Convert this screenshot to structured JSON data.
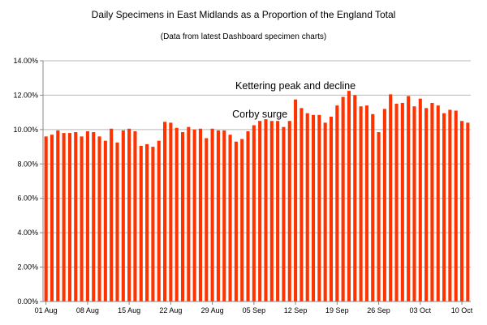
{
  "chart_data": {
    "type": "bar",
    "title": "Daily Specimens in East Midlands as a Proportion of the England Total",
    "subtitle": "(Data from latest Dashboard specimen charts)",
    "xlabel": "",
    "ylabel": "",
    "ylim": [
      0,
      14
    ],
    "y_tick_labels": [
      "0.00%",
      "2.00%",
      "4.00%",
      "6.00%",
      "8.00%",
      "10.00%",
      "12.00%",
      "14.00%"
    ],
    "x_tick_labels": [
      "01 Aug",
      "08 Aug",
      "15 Aug",
      "22 Aug",
      "29 Aug",
      "05 Sep",
      "12 Sep",
      "19 Sep",
      "26 Sep",
      "03 Oct",
      "10 Oct"
    ],
    "grid": true,
    "bar_color": "#ff3300",
    "values": [
      9.6,
      9.7,
      9.95,
      9.8,
      9.8,
      9.85,
      9.6,
      9.9,
      9.85,
      9.6,
      9.35,
      10.05,
      9.25,
      9.95,
      10.05,
      9.9,
      9.05,
      9.15,
      9.0,
      9.35,
      10.45,
      10.4,
      10.1,
      9.85,
      10.15,
      10.0,
      10.05,
      9.5,
      10.05,
      9.95,
      9.95,
      9.7,
      9.3,
      9.45,
      9.9,
      10.25,
      10.5,
      10.6,
      10.5,
      10.5,
      10.15,
      10.5,
      11.75,
      11.25,
      10.95,
      10.85,
      10.85,
      10.4,
      10.75,
      11.4,
      11.9,
      12.25,
      12.0,
      11.35,
      11.4,
      10.9,
      9.85,
      11.2,
      12.05,
      11.5,
      11.55,
      11.95,
      11.35,
      11.8,
      11.25,
      11.55,
      11.4,
      10.95,
      11.15,
      11.1,
      10.5,
      10.4
    ],
    "annotations": [
      {
        "text": "Corby surge",
        "x_index": 36,
        "y": 10.7
      },
      {
        "text": "Kettering peak and decline",
        "x_index": 42,
        "y": 12.35
      }
    ]
  }
}
